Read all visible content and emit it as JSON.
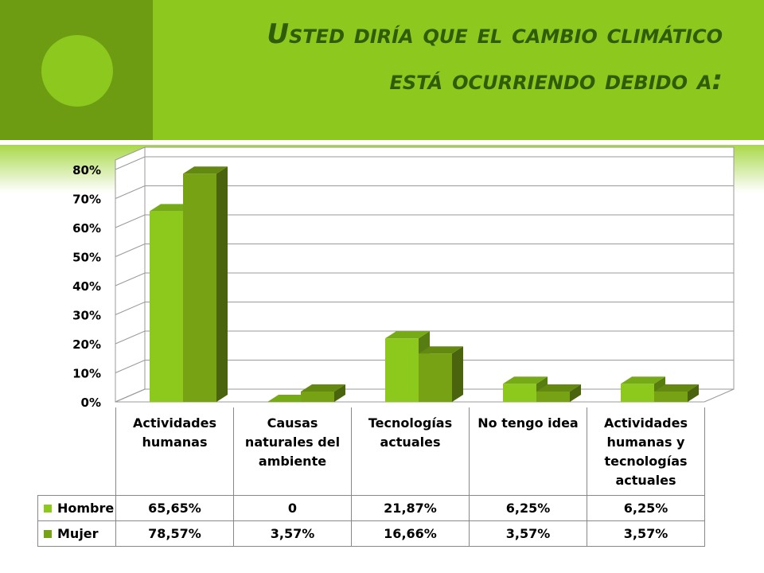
{
  "chart_data": {
    "type": "bar3d",
    "title": "Usted diría que el cambio climático está ocurriendo debido a:",
    "categories": [
      "Actividades humanas",
      "Causas naturales del ambiente",
      "Tecnologías actuales",
      "No tengo idea",
      "Actividades humanas y tecnologías actuales"
    ],
    "series": [
      {
        "name": "Hombre",
        "color": "#8dc81c",
        "values": [
          65.65,
          0,
          21.87,
          6.25,
          6.25
        ],
        "value_labels": [
          "65,65%",
          "0",
          "21,87%",
          "6,25%",
          "6,25%"
        ]
      },
      {
        "name": "Mujer",
        "color": "#76a214",
        "values": [
          78.57,
          3.57,
          16.66,
          3.57,
          3.57
        ],
        "value_labels": [
          "78,57%",
          "3,57%",
          "16,66%",
          "3,57%",
          "3,57%"
        ]
      }
    ],
    "ylim": [
      0,
      80
    ],
    "yticks": [
      {
        "value": 0,
        "label": "0%"
      },
      {
        "value": 10,
        "label": "10%"
      },
      {
        "value": 20,
        "label": "20%"
      },
      {
        "value": 30,
        "label": "30%"
      },
      {
        "value": 40,
        "label": "40%"
      },
      {
        "value": 50,
        "label": "50%"
      },
      {
        "value": 60,
        "label": "60%"
      },
      {
        "value": 70,
        "label": "70%"
      },
      {
        "value": 80,
        "label": "80%"
      }
    ],
    "grid": true
  }
}
